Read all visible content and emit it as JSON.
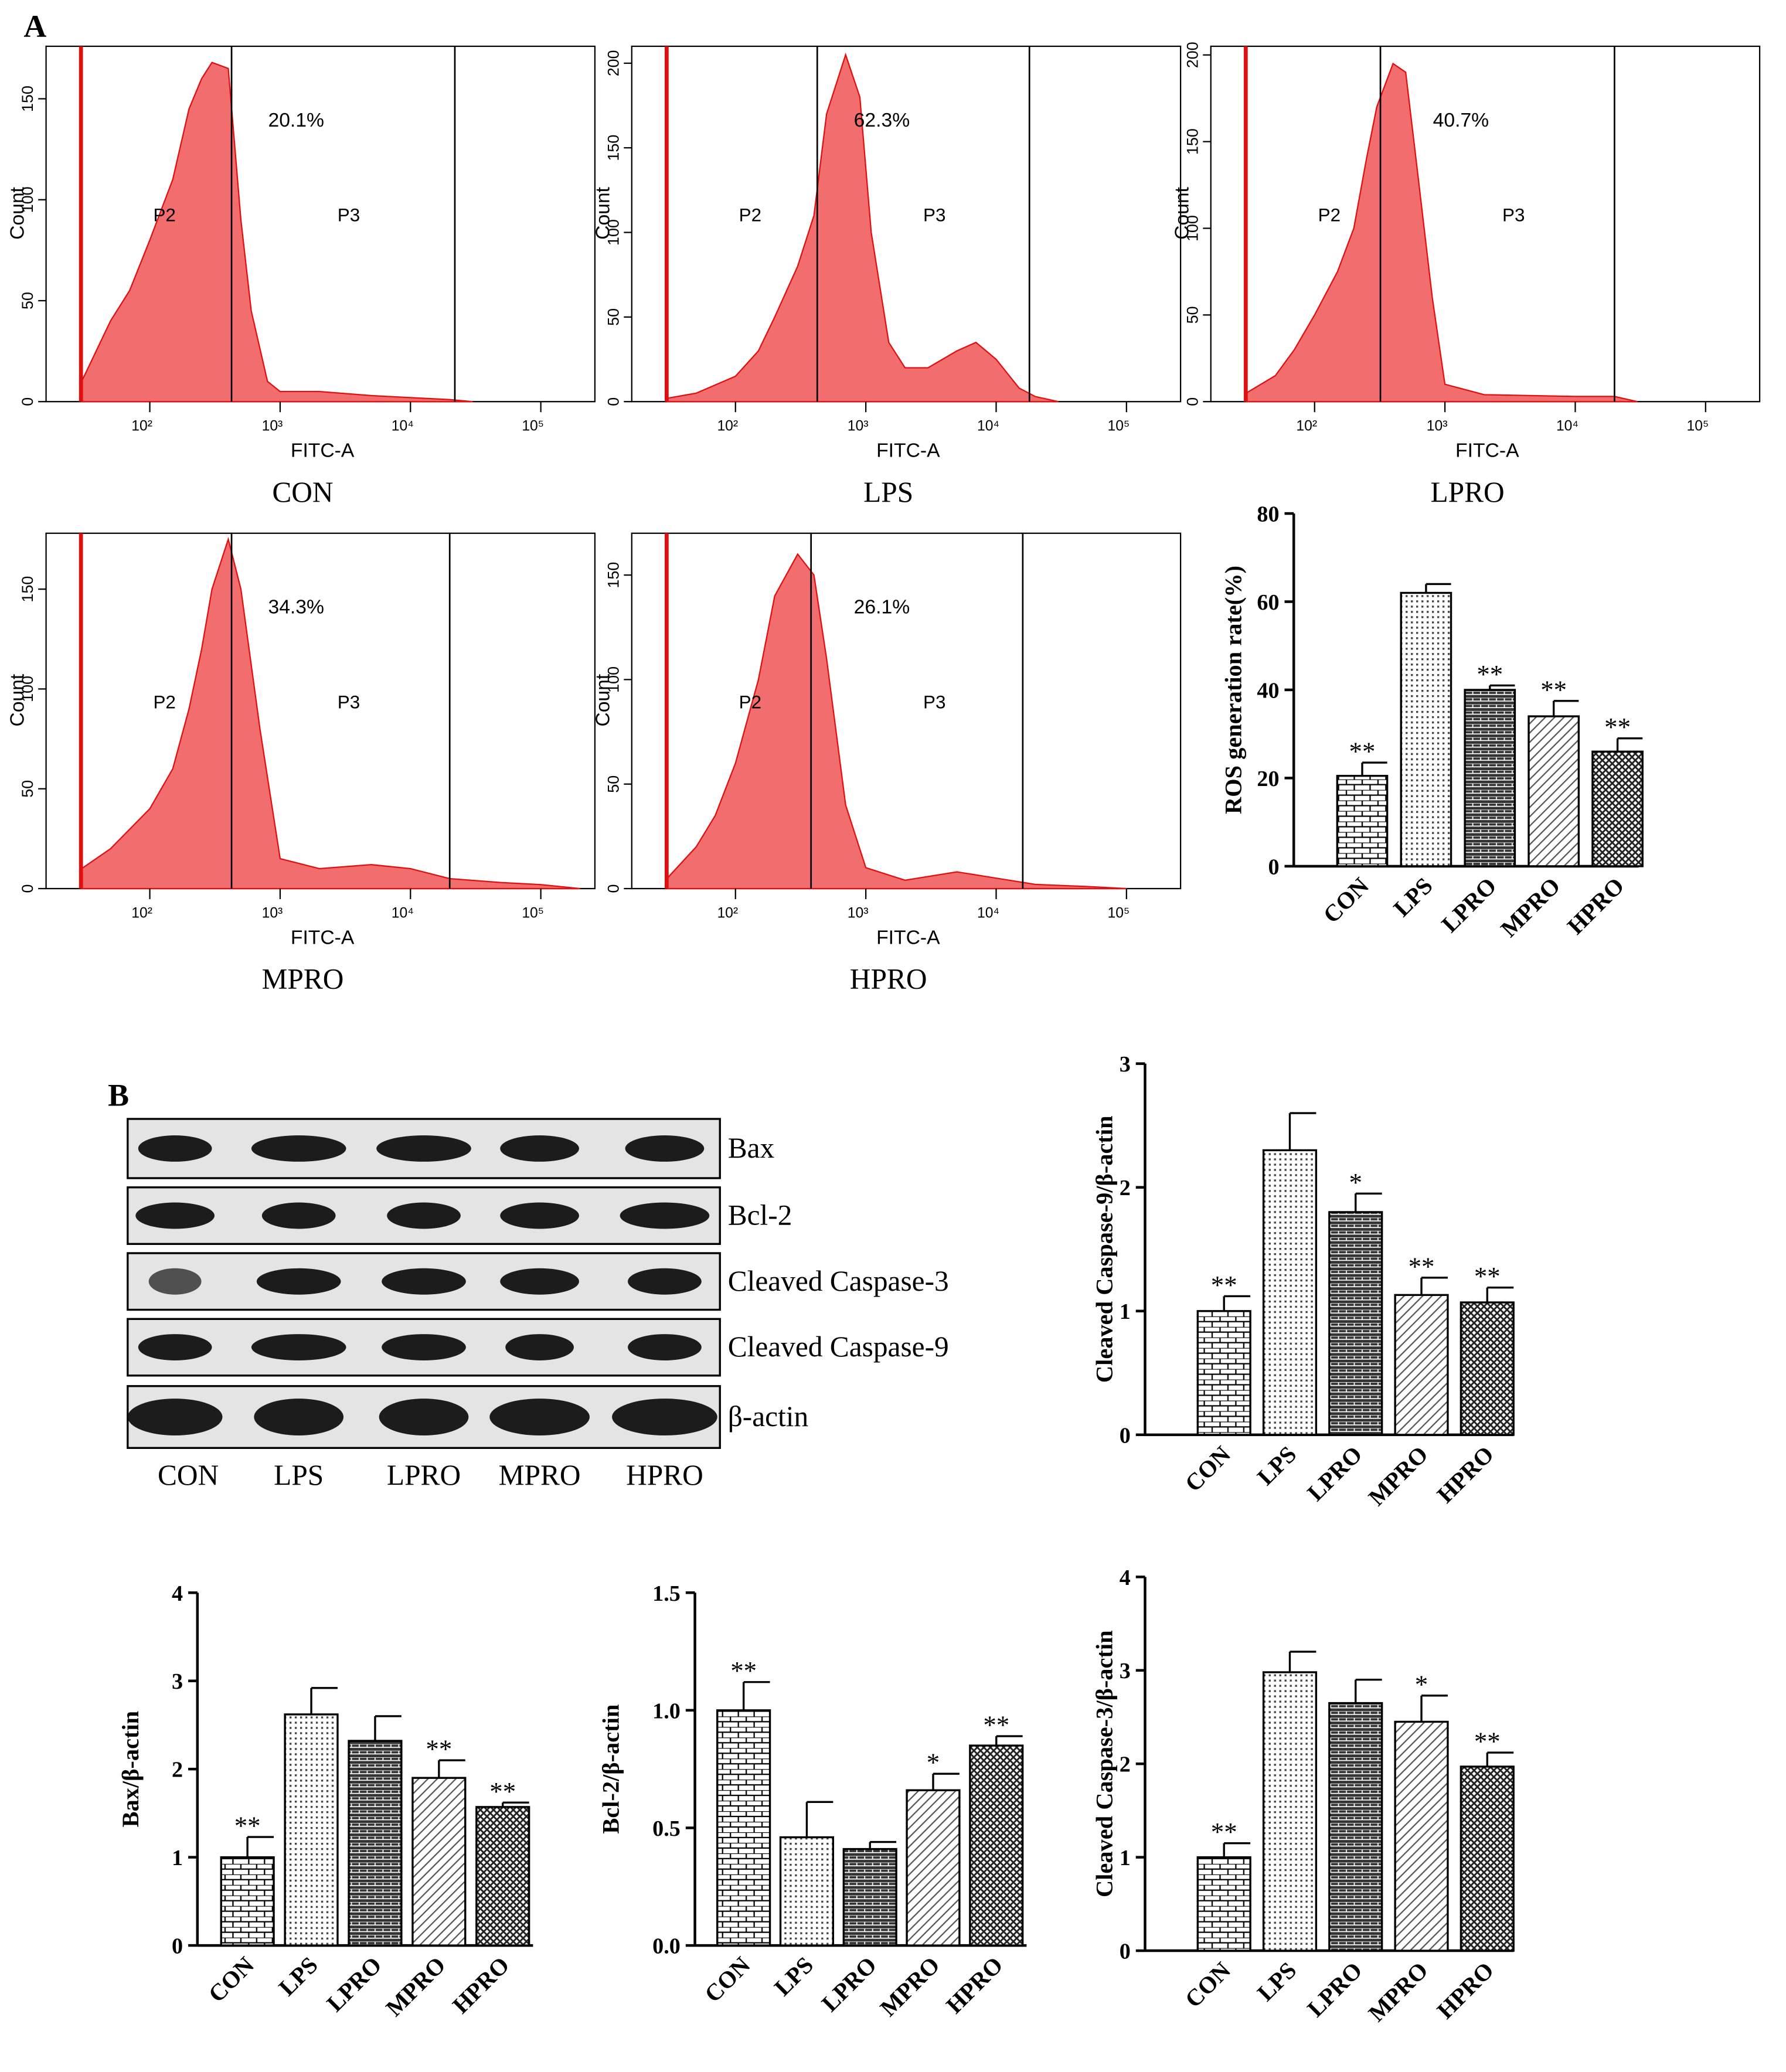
{
  "panels": [
    "A",
    "B"
  ],
  "blot": {
    "bands": [
      "Bax",
      "Bcl-2",
      "Cleaved Caspase-3",
      "Cleaved Caspase-9",
      "β-actin"
    ],
    "lanes": [
      "CON",
      "LPS",
      "LPRO",
      "MPRO",
      "HPRO"
    ]
  },
  "chart_data": [
    {
      "type": "area",
      "caption": "CON",
      "xlabel": "FITC-A",
      "ylabel": "Count",
      "annotation": "20.1%",
      "gate_labels": [
        "P2",
        "P3"
      ],
      "xlog": true,
      "color": "#f26d6d",
      "x": [
        30,
        50,
        70,
        100,
        150,
        200,
        250,
        300,
        400,
        500,
        600,
        800,
        1000,
        2000,
        5000,
        10000,
        20000,
        30000
      ],
      "values": [
        10,
        40,
        55,
        80,
        110,
        145,
        160,
        168,
        165,
        90,
        45,
        10,
        5,
        5,
        3,
        2,
        1,
        0
      ],
      "gates": [
        424,
        21900
      ],
      "xlim": [
        16,
        260000
      ],
      "xticks": [
        {
          "value": 100,
          "label": "10²"
        },
        {
          "value": 1000,
          "label": "10³"
        },
        {
          "value": 10000,
          "label": "10⁴"
        },
        {
          "value": 100000,
          "label": "10⁵"
        }
      ],
      "ylim": [
        0,
        176
      ],
      "yticks": [
        0,
        50,
        100,
        150
      ]
    },
    {
      "type": "area",
      "caption": "LPS",
      "xlabel": "FITC-A",
      "ylabel": "Count",
      "annotation": "62.3%",
      "gate_labels": [
        "P2",
        "P3"
      ],
      "xlog": true,
      "color": "#f26d6d",
      "x": [
        30,
        50,
        100,
        150,
        200,
        300,
        400,
        500,
        700,
        900,
        1100,
        1500,
        2000,
        3000,
        5000,
        7000,
        10000,
        15000,
        20000,
        30000
      ],
      "values": [
        2,
        5,
        15,
        30,
        50,
        80,
        110,
        170,
        205,
        180,
        100,
        35,
        20,
        20,
        30,
        35,
        25,
        8,
        3,
        0
      ],
      "gates": [
        424,
        18000
      ],
      "xlim": [
        16,
        260000
      ],
      "xticks": [
        {
          "value": 100,
          "label": "10²"
        },
        {
          "value": 1000,
          "label": "10³"
        },
        {
          "value": 10000,
          "label": "10⁴"
        },
        {
          "value": 100000,
          "label": "10⁵"
        }
      ],
      "ylim": [
        0,
        210
      ],
      "yticks": [
        0,
        50,
        100,
        150,
        200
      ]
    },
    {
      "type": "area",
      "caption": "LPRO",
      "xlabel": "FITC-A",
      "ylabel": "Count",
      "annotation": "40.7%",
      "gate_labels": [
        "P2",
        "P3"
      ],
      "xlog": true,
      "color": "#f26d6d",
      "x": [
        30,
        50,
        70,
        100,
        150,
        200,
        250,
        300,
        400,
        500,
        600,
        800,
        1000,
        2000,
        10000,
        20000,
        30000
      ],
      "values": [
        5,
        15,
        30,
        50,
        75,
        100,
        140,
        170,
        195,
        190,
        140,
        60,
        10,
        4,
        3,
        3,
        0
      ],
      "gates": [
        320,
        20000
      ],
      "xlim": [
        16,
        260000
      ],
      "xticks": [
        {
          "value": 100,
          "label": "10²"
        },
        {
          "value": 1000,
          "label": "10³"
        },
        {
          "value": 10000,
          "label": "10⁴"
        },
        {
          "value": 100000,
          "label": "10⁵"
        }
      ],
      "ylim": [
        0,
        205
      ],
      "yticks": [
        0,
        50,
        100,
        150,
        200
      ]
    },
    {
      "type": "area",
      "caption": "MPRO",
      "xlabel": "FITC-A",
      "ylabel": "Count",
      "annotation": "34.3%",
      "gate_labels": [
        "P2",
        "P3"
      ],
      "xlog": true,
      "color": "#f26d6d",
      "x": [
        30,
        50,
        100,
        150,
        200,
        250,
        300,
        400,
        500,
        700,
        1000,
        2000,
        5000,
        10000,
        20000,
        50000,
        100000,
        200000
      ],
      "values": [
        10,
        20,
        40,
        60,
        90,
        120,
        150,
        175,
        150,
        80,
        15,
        10,
        12,
        10,
        5,
        3,
        2,
        0
      ],
      "gates": [
        424,
        20000
      ],
      "xlim": [
        16,
        260000
      ],
      "xticks": [
        {
          "value": 100,
          "label": "10²"
        },
        {
          "value": 1000,
          "label": "10³"
        },
        {
          "value": 10000,
          "label": "10⁴"
        },
        {
          "value": 100000,
          "label": "10⁵"
        }
      ],
      "ylim": [
        0,
        178
      ],
      "yticks": [
        0,
        50,
        100,
        150
      ]
    },
    {
      "type": "area",
      "caption": "HPRO",
      "xlabel": "FITC-A",
      "ylabel": "Count",
      "annotation": "26.1%",
      "gate_labels": [
        "P2",
        "P3"
      ],
      "xlog": true,
      "color": "#f26d6d",
      "x": [
        30,
        50,
        70,
        100,
        150,
        200,
        300,
        400,
        500,
        700,
        1000,
        2000,
        5000,
        10000,
        20000,
        50000,
        100000
      ],
      "values": [
        5,
        20,
        35,
        60,
        100,
        140,
        160,
        150,
        110,
        40,
        10,
        4,
        8,
        5,
        2,
        1,
        0
      ],
      "gates": [
        380,
        16000
      ],
      "xlim": [
        16,
        260000
      ],
      "xticks": [
        {
          "value": 100,
          "label": "10²"
        },
        {
          "value": 1000,
          "label": "10³"
        },
        {
          "value": 10000,
          "label": "10⁴"
        },
        {
          "value": 100000,
          "label": "10⁵"
        }
      ],
      "ylim": [
        0,
        170
      ],
      "yticks": [
        0,
        50,
        100,
        150
      ]
    },
    {
      "type": "bar",
      "ylabel": "ROS generation rate(%)",
      "categories": [
        "CON",
        "LPS",
        "LPRO",
        "MPRO",
        "HPRO"
      ],
      "values": [
        20.5,
        62,
        40,
        34,
        26
      ],
      "errors": [
        3,
        2,
        1,
        3.5,
        3
      ],
      "significance": [
        "**",
        null,
        "**",
        "**",
        "**"
      ],
      "ylim": [
        0,
        80
      ],
      "yticks": [
        0,
        20,
        40,
        60,
        80
      ]
    },
    {
      "type": "bar",
      "ylabel": "Cleaved Caspase-9/β-actin",
      "categories": [
        "CON",
        "LPS",
        "LPRO",
        "MPRO",
        "HPRO"
      ],
      "values": [
        1.0,
        2.3,
        1.8,
        1.13,
        1.07
      ],
      "errors": [
        0.12,
        0.3,
        0.15,
        0.14,
        0.12
      ],
      "significance": [
        "**",
        null,
        "*",
        "**",
        "**"
      ],
      "ylim": [
        0,
        3
      ],
      "yticks": [
        0,
        1,
        2,
        3
      ]
    },
    {
      "type": "bar",
      "ylabel": "Bax/β-actin",
      "categories": [
        "CON",
        "LPS",
        "LPRO",
        "MPRO",
        "HPRO"
      ],
      "values": [
        1.0,
        2.62,
        2.32,
        1.9,
        1.57
      ],
      "errors": [
        0.23,
        0.3,
        0.28,
        0.2,
        0.05
      ],
      "significance": [
        "**",
        null,
        null,
        "**",
        "**"
      ],
      "ylim": [
        0,
        4
      ],
      "yticks": [
        0,
        1,
        2,
        3,
        4
      ]
    },
    {
      "type": "bar",
      "ylabel": "Bcl-2/β-actin",
      "categories": [
        "CON",
        "LPS",
        "LPRO",
        "MPRO",
        "HPRO"
      ],
      "values": [
        1.0,
        0.46,
        0.41,
        0.66,
        0.85
      ],
      "errors": [
        0.12,
        0.15,
        0.03,
        0.07,
        0.04
      ],
      "significance": [
        "**",
        null,
        null,
        "*",
        "**"
      ],
      "ylim": [
        0,
        1.5
      ],
      "yticks": [
        {
          "value": 0,
          "label": "0.0"
        },
        0.5,
        {
          "value": 1,
          "label": "1.0"
        },
        1.5
      ]
    },
    {
      "type": "bar",
      "ylabel": "Cleaved Caspase-3/β-actin",
      "categories": [
        "CON",
        "LPS",
        "LPRO",
        "MPRO",
        "HPRO"
      ],
      "values": [
        1.0,
        2.98,
        2.65,
        2.45,
        1.97
      ],
      "errors": [
        0.15,
        0.22,
        0.25,
        0.28,
        0.15
      ],
      "significance": [
        "**",
        null,
        null,
        "*",
        "**"
      ],
      "ylim": [
        0,
        4
      ],
      "yticks": [
        0,
        1,
        2,
        3,
        4
      ]
    }
  ]
}
